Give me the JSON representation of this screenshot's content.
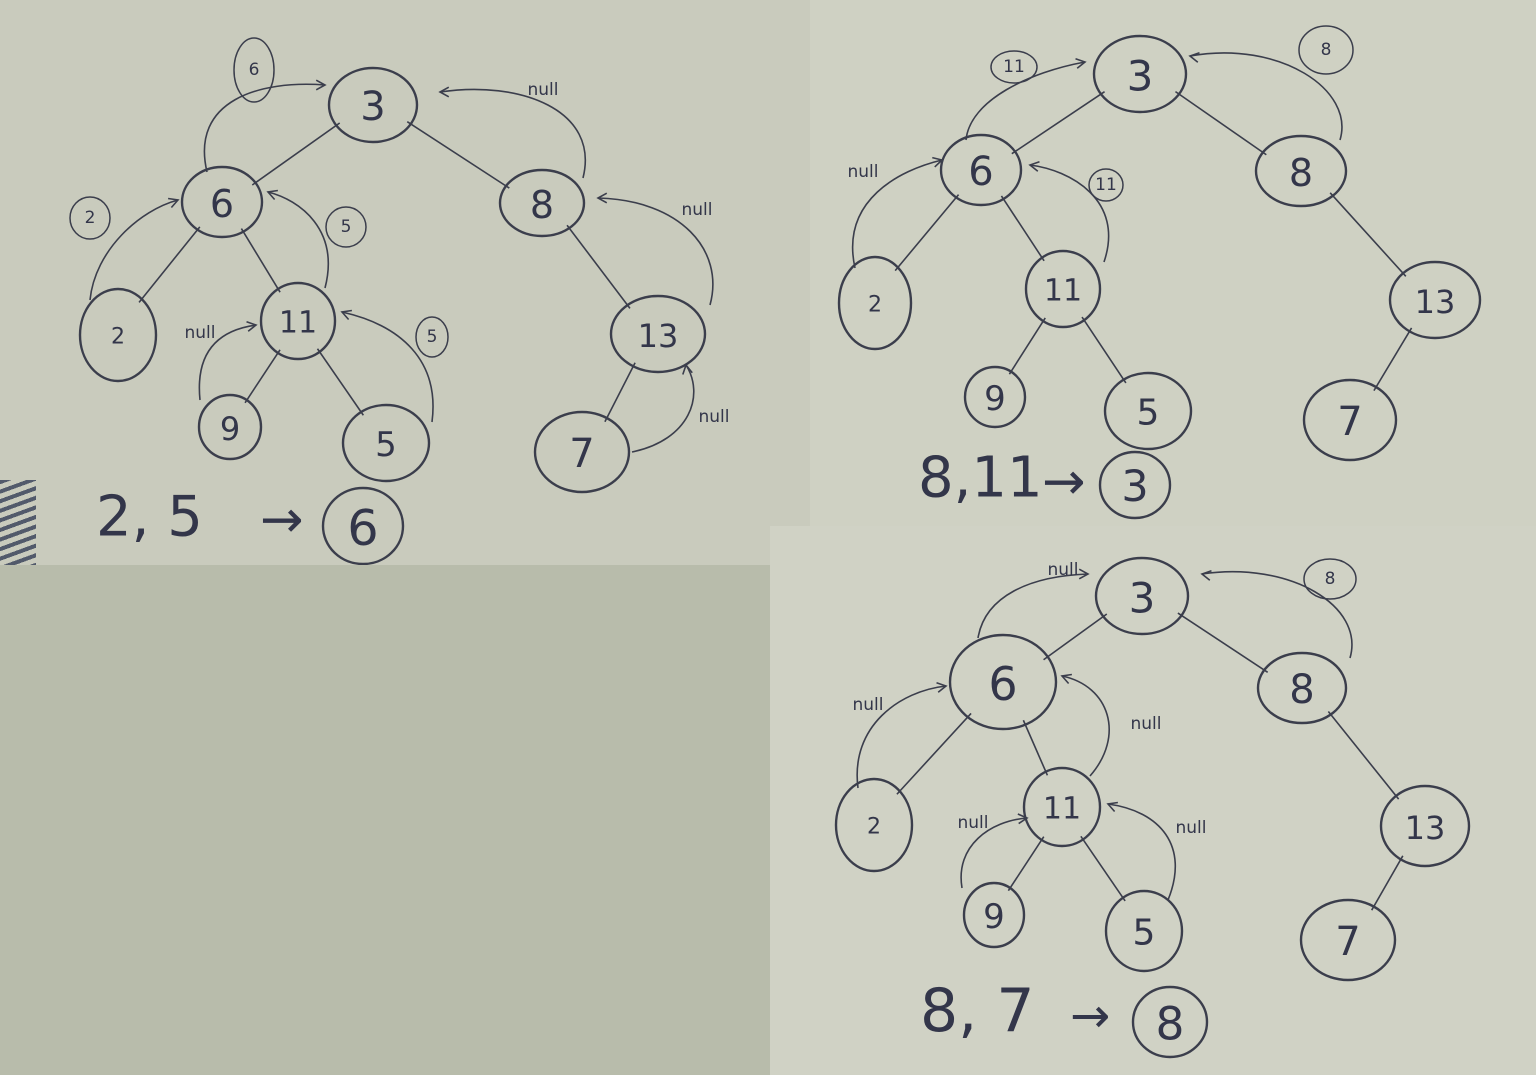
{
  "panels": [
    {
      "id": "panel-a",
      "nodes": [
        {
          "label": "3",
          "parent": null
        },
        {
          "label": "6",
          "parent": "3"
        },
        {
          "label": "8",
          "parent": "3"
        },
        {
          "label": "2",
          "parent": "6"
        },
        {
          "label": "11",
          "parent": "6"
        },
        {
          "label": "9",
          "parent": "11"
        },
        {
          "label": "5",
          "parent": "11"
        },
        {
          "label": "13",
          "parent": "8"
        },
        {
          "label": "7",
          "parent": "13"
        }
      ],
      "annotations": [
        {
          "text": "6",
          "circled": true
        },
        {
          "text": "null",
          "circled": false
        },
        {
          "text": "2",
          "circled": true
        },
        {
          "text": "5",
          "circled": true
        },
        {
          "text": "null",
          "circled": false
        },
        {
          "text": "5",
          "circled": true
        },
        {
          "text": "null",
          "circled": false
        },
        {
          "text": "null",
          "circled": false
        }
      ],
      "result": {
        "pair": "2, 5",
        "arrow": "→",
        "answer": "6"
      }
    },
    {
      "id": "panel-b",
      "nodes": [
        {
          "label": "3",
          "parent": null
        },
        {
          "label": "6",
          "parent": "3"
        },
        {
          "label": "8",
          "parent": "3"
        },
        {
          "label": "2",
          "parent": "6"
        },
        {
          "label": "11",
          "parent": "6"
        },
        {
          "label": "9",
          "parent": "11"
        },
        {
          "label": "5",
          "parent": "11"
        },
        {
          "label": "13",
          "parent": "8"
        },
        {
          "label": "7",
          "parent": "13"
        }
      ],
      "annotations": [
        {
          "text": "11",
          "circled": true
        },
        {
          "text": "8",
          "circled": true
        },
        {
          "text": "null",
          "circled": false
        },
        {
          "text": "11",
          "circled": true
        }
      ],
      "result": {
        "pair": "8,11",
        "arrow": "→",
        "answer": "3"
      }
    },
    {
      "id": "panel-c",
      "nodes": [
        {
          "label": "3",
          "parent": null
        },
        {
          "label": "6",
          "parent": "3"
        },
        {
          "label": "8",
          "parent": "3"
        },
        {
          "label": "2",
          "parent": "6"
        },
        {
          "label": "11",
          "parent": "6"
        },
        {
          "label": "9",
          "parent": "11"
        },
        {
          "label": "5",
          "parent": "11"
        },
        {
          "label": "13",
          "parent": "8"
        },
        {
          "label": "7",
          "parent": "13"
        }
      ],
      "annotations": [
        {
          "text": "null",
          "circled": false
        },
        {
          "text": "8",
          "circled": true
        },
        {
          "text": "null",
          "circled": false
        },
        {
          "text": "null",
          "circled": false
        },
        {
          "text": "null",
          "circled": false
        },
        {
          "text": "null",
          "circled": false
        }
      ],
      "result": {
        "pair": "8, 7",
        "arrow": "→",
        "answer": "8"
      }
    }
  ]
}
